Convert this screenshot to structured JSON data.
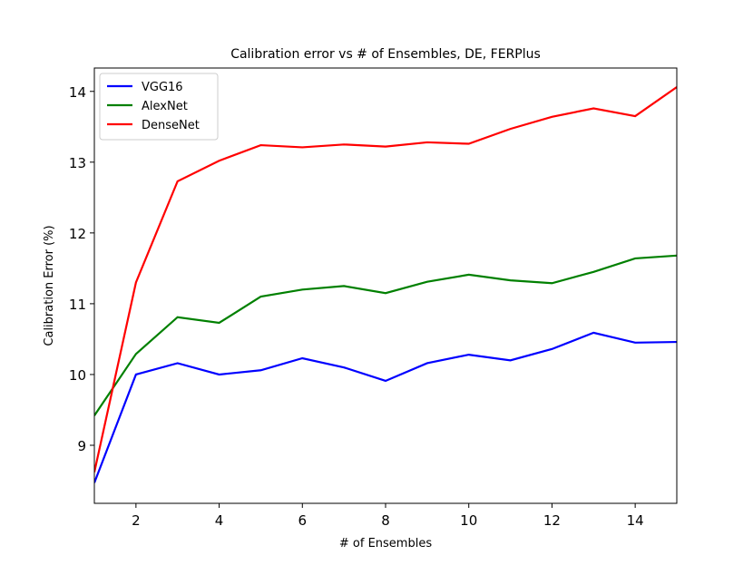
{
  "chart_data": {
    "type": "line",
    "title": "Calibration error vs # of Ensembles, DE, FERPlus",
    "x_label": "# of Ensembles",
    "y_label": "Calibration Error (%)",
    "x": [
      1,
      2,
      3,
      4,
      5,
      6,
      7,
      8,
      9,
      10,
      11,
      12,
      13,
      14,
      15
    ],
    "series": [
      {
        "name": "VGG16",
        "color": "#0000ff",
        "values": [
          8.47,
          10.0,
          10.16,
          10.0,
          10.06,
          10.23,
          10.1,
          9.91,
          10.16,
          10.28,
          10.2,
          10.36,
          10.59,
          10.45,
          10.46
        ]
      },
      {
        "name": "AlexNet",
        "color": "#008000",
        "values": [
          9.42,
          10.29,
          10.81,
          10.73,
          11.1,
          11.2,
          11.25,
          11.15,
          11.31,
          11.41,
          11.33,
          11.29,
          11.45,
          11.64,
          11.68
        ]
      },
      {
        "name": "DenseNet",
        "color": "#ff0000",
        "values": [
          8.62,
          11.3,
          12.73,
          13.02,
          13.24,
          13.21,
          13.25,
          13.22,
          13.28,
          13.26,
          13.47,
          13.64,
          13.76,
          13.65,
          14.06
        ]
      }
    ],
    "xlim": [
      1,
      15
    ],
    "xticks": [
      2,
      4,
      6,
      8,
      10,
      12,
      14
    ],
    "ylim": [
      8.18,
      14.33
    ],
    "yticks": [
      9,
      10,
      11,
      12,
      13,
      14
    ],
    "legend": "upper left"
  }
}
